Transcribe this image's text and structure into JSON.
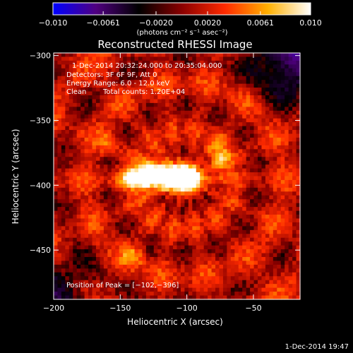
{
  "chart_data": {
    "type": "heatmap",
    "title": "Reconstructed RHESSI Image",
    "xlabel": "Heliocentric X (arcsec)",
    "ylabel": "Heliocentric Y (arcsec)",
    "xlim": [
      -200,
      -15
    ],
    "ylim": [
      -488,
      -298
    ],
    "x_ticks": [
      -200,
      -150,
      -100,
      -50
    ],
    "x_tick_labels": [
      "−200",
      "−150",
      "−100",
      "−50"
    ],
    "y_ticks": [
      -300,
      -350,
      -400,
      -450
    ],
    "y_tick_labels": [
      "−300",
      "−350",
      "−400",
      "−450"
    ],
    "colorbar": {
      "min": -0.01,
      "max": 0.01,
      "ticks": [
        -0.01,
        -0.0061,
        -0.002,
        0.002,
        0.0061,
        0.01
      ],
      "tick_labels": [
        "−0.010",
        "−0.0061",
        "−0.0020",
        "0.0020",
        "0.0061",
        "0.010"
      ],
      "units_label": "(photons cm⁻² s⁻¹ asec⁻²)",
      "colormap": [
        "#0000ff",
        "#500080",
        "#000000",
        "#8a0000",
        "#ff2a00",
        "#ffb000",
        "#ffffff"
      ]
    },
    "sources": [
      {
        "x": -128,
        "y": -394,
        "peak": 1.0,
        "sx": 14,
        "sy": 6
      },
      {
        "x": -102,
        "y": -396,
        "peak": 1.0,
        "sx": 8,
        "sy": 6
      },
      {
        "x": -112,
        "y": -392,
        "peak": 0.85,
        "sx": 20,
        "sy": 8
      },
      {
        "x": -75,
        "y": -376,
        "peak": 0.55,
        "sx": 5,
        "sy": 8
      },
      {
        "x": -140,
        "y": -455,
        "peak": 0.45,
        "sx": 6,
        "sy": 6
      },
      {
        "x": -158,
        "y": -368,
        "peak": 0.4,
        "sx": 5,
        "sy": 6
      }
    ],
    "annotations": {
      "time_range": "1-Dec-2014 20:32:24.000 to 20:35:04.000",
      "detectors": "Detectors: 3F 6F 9F, Att 0",
      "energy_range": "Energy Range: 6.0 - 12.0 keV",
      "clean": "Clean",
      "total_counts": "Total counts: 1.20E+04",
      "peak_position": "Position of Peak = [−102,−396]"
    },
    "footer_timestamp": "1-Dec-2014 19:47"
  }
}
